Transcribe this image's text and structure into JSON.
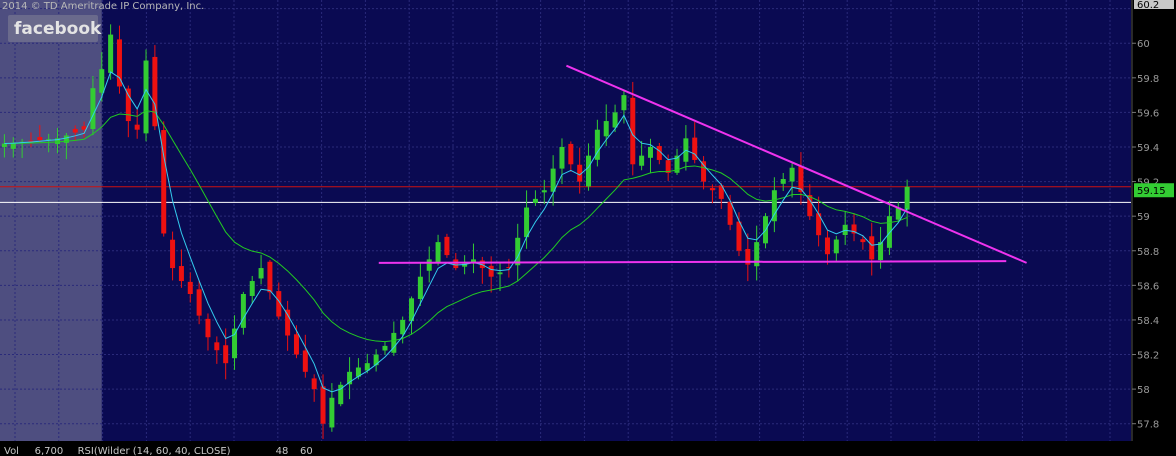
{
  "header": {
    "copyright": "2014 © TD Ameritrade IP Company, Inc."
  },
  "watermark": {
    "logo_text": "facebook"
  },
  "bottom_bar": {
    "items": [
      "Vol",
      "6,700",
      "RSI(Wilder (14, 60, 40, CLOSE)",
      "48",
      "60"
    ]
  },
  "colors": {
    "background": "#0a0a52",
    "grid": "#2a2a7a",
    "up_candle": "#33cc33",
    "down_candle": "#ee1111",
    "ema_fast": "#33ccee",
    "ema_slow": "#22cc22",
    "trendline": "#ee33ee",
    "price_line": "#ffffff",
    "red_line": "#cc1111",
    "price_badge": "#33cc33",
    "shaded_region": "#5a5a88"
  },
  "chart_data": {
    "type": "candlestick",
    "title": "",
    "ylim": [
      57.7,
      60.25
    ],
    "grid": true,
    "yticks": [
      "57.8",
      "58",
      "58.2",
      "58.4",
      "58.6",
      "58.8",
      "59",
      "59.2",
      "59.4",
      "59.6",
      "59.8",
      "60",
      "60.2"
    ],
    "top_tick_label": "60.2",
    "last_price": 59.15,
    "last_price_label": "59.15",
    "horizontal_lines": [
      {
        "name": "",
        "value": 59.17,
        "color": "red"
      },
      {
        "name": "",
        "value": 59.08,
        "color": "white"
      }
    ],
    "shaded_bars": [
      0,
      11
    ],
    "price_anchors": [
      [
        0,
        59.42
      ],
      [
        4,
        59.44
      ],
      [
        6,
        59.45
      ],
      [
        9,
        59.5
      ],
      [
        10,
        59.74
      ],
      [
        11,
        59.85
      ],
      [
        12,
        60.05
      ],
      [
        13,
        59.75
      ],
      [
        14,
        59.55
      ],
      [
        15,
        59.5
      ],
      [
        16,
        59.9
      ],
      [
        17,
        59.52
      ],
      [
        18,
        58.9
      ],
      [
        19,
        58.7
      ],
      [
        21,
        58.55
      ],
      [
        23,
        58.3
      ],
      [
        25,
        58.15
      ],
      [
        27,
        58.55
      ],
      [
        29,
        58.7
      ],
      [
        31,
        58.42
      ],
      [
        33,
        58.2
      ],
      [
        35,
        58.0
      ],
      [
        36,
        57.8
      ],
      [
        37,
        57.95
      ],
      [
        39,
        58.1
      ],
      [
        41,
        58.15
      ],
      [
        43,
        58.25
      ],
      [
        45,
        58.4
      ],
      [
        47,
        58.65
      ],
      [
        49,
        58.85
      ],
      [
        51,
        58.7
      ],
      [
        53,
        58.75
      ],
      [
        55,
        58.65
      ],
      [
        57,
        58.7
      ],
      [
        59,
        59.05
      ],
      [
        61,
        59.15
      ],
      [
        63,
        59.4
      ],
      [
        65,
        59.2
      ],
      [
        67,
        59.5
      ],
      [
        69,
        59.6
      ],
      [
        70,
        59.7
      ],
      [
        71,
        59.3
      ],
      [
        73,
        59.4
      ],
      [
        75,
        59.25
      ],
      [
        77,
        59.45
      ],
      [
        79,
        59.2
      ],
      [
        81,
        59.1
      ],
      [
        83,
        58.8
      ],
      [
        84,
        58.72
      ],
      [
        85,
        58.85
      ],
      [
        87,
        59.15
      ],
      [
        89,
        59.28
      ],
      [
        91,
        59.0
      ],
      [
        93,
        58.78
      ],
      [
        95,
        58.95
      ],
      [
        97,
        58.85
      ],
      [
        98,
        58.75
      ],
      [
        99,
        58.85
      ],
      [
        100,
        59.0
      ],
      [
        101,
        59.05
      ],
      [
        102,
        59.17
      ]
    ],
    "trendlines": [
      {
        "name": "",
        "kind": "descending resistance",
        "points": [
          [
            63.5,
            59.87
          ],
          [
            115.5,
            58.73
          ]
        ]
      },
      {
        "name": "",
        "kind": "horizontal support",
        "points": [
          [
            42.3,
            58.73
          ],
          [
            113.2,
            58.74
          ]
        ]
      }
    ]
  }
}
